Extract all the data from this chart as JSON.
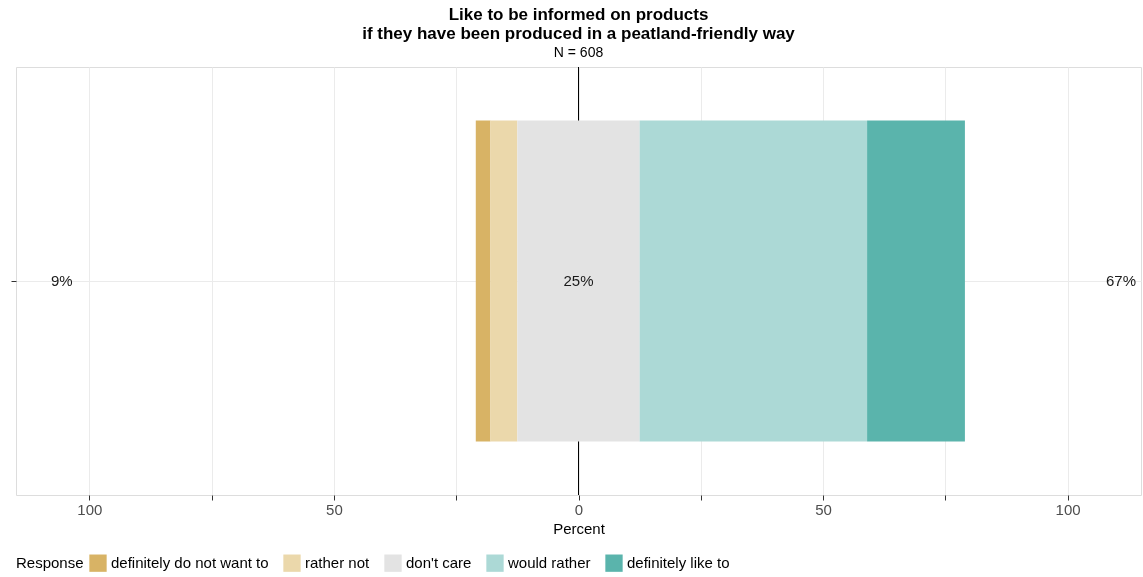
{
  "chart_data": {
    "type": "bar",
    "orientation": "horizontal",
    "title": "Like to be informed on products\nif they have been produced in a peatland-friendly way",
    "subtitle": "N = 608",
    "xlabel": "Percent",
    "legend_title": "Response",
    "categories": [
      null
    ],
    "series": [
      {
        "name": "definitely do not want to",
        "color": "#d8b365",
        "base": [
          -21
        ],
        "values": [
          3
        ]
      },
      {
        "name": "rather not",
        "color": "#ebd8ab",
        "base": [
          -18
        ],
        "values": [
          5.5
        ]
      },
      {
        "name": "don't care",
        "color": "#e3e3e3",
        "base": [
          -12.5
        ],
        "values": [
          25
        ]
      },
      {
        "name": "would rather",
        "color": "#acd9d6",
        "base": [
          12.5
        ],
        "values": [
          46.5
        ]
      },
      {
        "name": "definitely like to",
        "color": "#5ab4ac",
        "base": [
          59
        ],
        "values": [
          20
        ]
      }
    ],
    "xlim": [
      -115,
      115
    ],
    "xticks": [
      {
        "value": -100,
        "label": "100"
      },
      {
        "value": -75,
        "label": null
      },
      {
        "value": -50,
        "label": "50"
      },
      {
        "value": -25,
        "label": null
      },
      0,
      {
        "value": 25,
        "label": null
      },
      50,
      {
        "value": 75,
        "label": null
      },
      100
    ],
    "ref_lines": [
      {
        "axis": "x",
        "value": 0,
        "color": "#000000"
      }
    ],
    "annotations": [
      "9%",
      "25%",
      "67%"
    ],
    "grid": true,
    "legend": "bottom",
    "tick_labels": "x"
  }
}
